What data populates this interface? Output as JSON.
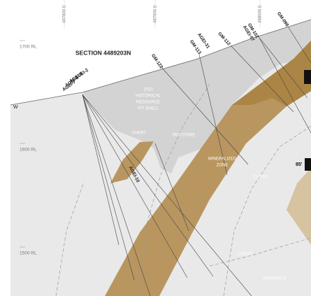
{
  "section_title": "SECTION 4489203N",
  "eastings": [
    "487800 E",
    "487900 E",
    "488000 E"
  ],
  "elevations": [
    "1700 RL",
    "1600 RL",
    "1500 RL"
  ],
  "direction": "W",
  "pit_shell": [
    "2010",
    "HISTORICAL",
    "RESOURCE",
    "PIT SHELL"
  ],
  "units": [
    "CHERT",
    "SILTSTONE",
    "MINERALIZED",
    "ZONE",
    "CHERT",
    "CHERT",
    "HORNFELS"
  ],
  "drill_holes": [
    "AGEI-2",
    "AGEI-5",
    "AGEI-6",
    "AGEI-7",
    "GM-122",
    "GM-113",
    "AGEI-31",
    "GM-112",
    "GM-102",
    "AGEI-57",
    "GM-098",
    "AGEI-10"
  ],
  "callout": "85'"
}
